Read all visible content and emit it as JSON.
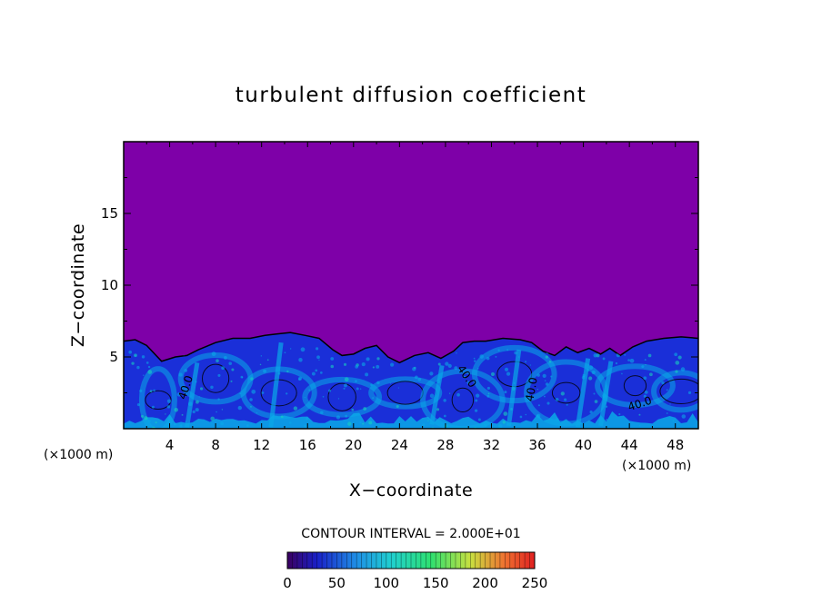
{
  "chart_data": {
    "type": "heatmap",
    "title": "turbulent diffusion coefficient",
    "xlabel": "X−coordinate",
    "ylabel": "Z−coordinate",
    "x_unit_left": "(×1000 m)",
    "x_unit_right": "(×1000 m)",
    "xlim": [
      0,
      50
    ],
    "ylim": [
      0,
      20
    ],
    "x_ticks": [
      4,
      8,
      12,
      16,
      20,
      24,
      28,
      32,
      36,
      40,
      44,
      48
    ],
    "y_ticks": [
      5,
      10,
      15
    ],
    "contour_interval_text": "CONTOUR INTERVAL = 2.000E+01",
    "contour_labels": [
      "40.0",
      "40.0",
      "40.0",
      "40.0"
    ],
    "colorbar": {
      "min": 0,
      "max": 250,
      "ticks": [
        0,
        50,
        100,
        150,
        200,
        250
      ]
    },
    "colors": {
      "background_field": "#7e00a8",
      "low": "#1a2fd8",
      "mid": "#0aa9e8",
      "high": "#18d1c0"
    },
    "boundary_layer": [
      [
        0,
        6.1
      ],
      [
        1,
        6.2
      ],
      [
        2,
        5.8
      ],
      [
        3.3,
        4.7
      ],
      [
        4.5,
        5.0
      ],
      [
        5.5,
        5.1
      ],
      [
        6.5,
        5.5
      ],
      [
        8,
        6.0
      ],
      [
        9.5,
        6.3
      ],
      [
        11,
        6.3
      ],
      [
        12.3,
        6.5
      ],
      [
        13.3,
        6.6
      ],
      [
        14.5,
        6.7
      ],
      [
        15.8,
        6.5
      ],
      [
        17,
        6.3
      ],
      [
        18.2,
        5.5
      ],
      [
        19,
        5.1
      ],
      [
        20,
        5.2
      ],
      [
        21,
        5.6
      ],
      [
        22,
        5.8
      ],
      [
        23,
        5.0
      ],
      [
        24,
        4.6
      ],
      [
        25.3,
        5.1
      ],
      [
        26.5,
        5.3
      ],
      [
        27.6,
        4.9
      ],
      [
        28.7,
        5.4
      ],
      [
        29.5,
        6.0
      ],
      [
        30.5,
        6.1
      ],
      [
        31.5,
        6.1
      ],
      [
        33,
        6.3
      ],
      [
        34.5,
        6.2
      ],
      [
        35.5,
        6.0
      ],
      [
        36.5,
        5.4
      ],
      [
        37.5,
        5.1
      ],
      [
        38.5,
        5.7
      ],
      [
        39.5,
        5.3
      ],
      [
        40.5,
        5.6
      ],
      [
        41.5,
        5.2
      ],
      [
        42.3,
        5.6
      ],
      [
        43.2,
        5.1
      ],
      [
        44.3,
        5.7
      ],
      [
        45.5,
        6.1
      ],
      [
        47,
        6.3
      ],
      [
        48.5,
        6.4
      ],
      [
        50,
        6.3
      ]
    ]
  }
}
